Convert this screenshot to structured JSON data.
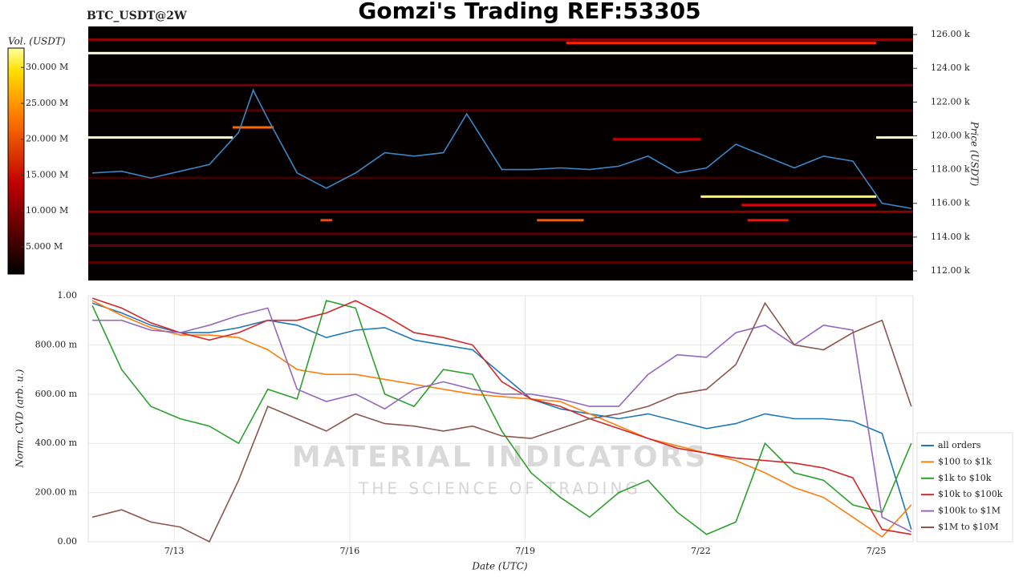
{
  "chart_data": [
    {
      "type": "heatmap",
      "title": "Gomzi's Trading REF:53305",
      "subtitle": "BTC_USDT@2W",
      "ylabel": "Price (USDT)",
      "zlabel": "Vol. (USDT)",
      "xlim": [
        11.53,
        25.63
      ],
      "ylim": [
        111430,
        126480
      ],
      "yticks": [
        {
          "value": 112000,
          "label": "112.00 k"
        },
        {
          "value": 114000,
          "label": "114.00 k"
        },
        {
          "value": 116000,
          "label": "116.00 k"
        },
        {
          "value": 118000,
          "label": "118.00 k"
        },
        {
          "value": 120000,
          "label": "120.00 k"
        },
        {
          "value": 122000,
          "label": "122.00 k"
        },
        {
          "value": 124000,
          "label": "124.00 k"
        },
        {
          "value": 126000,
          "label": "126.00 k"
        }
      ],
      "zlim": [
        1200000,
        32700000
      ],
      "zticks": [
        {
          "value": 5000000,
          "label": "5.000 M"
        },
        {
          "value": 10000000,
          "label": "10.000 M"
        },
        {
          "value": 15000000,
          "label": "15.000 M"
        },
        {
          "value": 20000000,
          "label": "20.000 M"
        },
        {
          "value": 25000000,
          "label": "25.000 M"
        },
        {
          "value": 30000000,
          "label": "30.000 M"
        }
      ],
      "walls": [
        {
          "price": 125700,
          "start": 11.53,
          "end": 25.63,
          "volume": 9000000
        },
        {
          "price": 124900,
          "start": 11.53,
          "end": 25.63,
          "volume": 31000000
        },
        {
          "price": 125500,
          "start": 19.7,
          "end": 25.0,
          "volume": 16000000
        },
        {
          "price": 123000,
          "start": 11.53,
          "end": 25.63,
          "volume": 8000000
        },
        {
          "price": 121500,
          "start": 11.53,
          "end": 25.63,
          "volume": 6000000
        },
        {
          "price": 120500,
          "start": 14.0,
          "end": 14.7,
          "volume": 20000000
        },
        {
          "price": 119900,
          "start": 11.53,
          "end": 14.0,
          "volume": 31000000
        },
        {
          "price": 119900,
          "start": 25.0,
          "end": 25.63,
          "volume": 31000000
        },
        {
          "price": 119800,
          "start": 20.5,
          "end": 22.0,
          "volume": 12000000
        },
        {
          "price": 117500,
          "start": 11.53,
          "end": 25.63,
          "volume": 5000000
        },
        {
          "price": 116400,
          "start": 22.0,
          "end": 25.0,
          "volume": 28000000
        },
        {
          "price": 115900,
          "start": 22.7,
          "end": 25.0,
          "volume": 14000000
        },
        {
          "price": 115500,
          "start": 11.53,
          "end": 25.63,
          "volume": 9000000
        },
        {
          "price": 115000,
          "start": 15.5,
          "end": 15.7,
          "volume": 18000000
        },
        {
          "price": 115000,
          "start": 19.2,
          "end": 20.0,
          "volume": 19000000
        },
        {
          "price": 115000,
          "start": 22.8,
          "end": 23.5,
          "volume": 15000000
        },
        {
          "price": 114200,
          "start": 11.53,
          "end": 25.63,
          "volume": 6000000
        },
        {
          "price": 113500,
          "start": 11.53,
          "end": 25.63,
          "volume": 7000000
        },
        {
          "price": 112500,
          "start": 11.53,
          "end": 25.63,
          "volume": 6000000
        }
      ],
      "line_color": "#3a87c8",
      "x": [
        11.6,
        12.1,
        12.6,
        13.1,
        13.6,
        14.1,
        14.35,
        14.6,
        15.1,
        15.6,
        16.1,
        16.6,
        17.1,
        17.6,
        18.0,
        18.6,
        19.1,
        19.6,
        20.1,
        20.6,
        21.1,
        21.6,
        22.1,
        22.6,
        23.1,
        23.6,
        24.1,
        24.6,
        25.1,
        25.6
      ],
      "values": [
        117800,
        117900,
        117500,
        117900,
        118300,
        120200,
        122700,
        121000,
        117800,
        116900,
        117800,
        119000,
        118800,
        119000,
        121300,
        118000,
        118000,
        118100,
        118000,
        118200,
        118800,
        117800,
        118100,
        119500,
        118800,
        118100,
        118800,
        118500,
        116000,
        115700
      ]
    },
    {
      "type": "line",
      "xlabel": "Date (UTC)",
      "ylabel": "Norm. CVD (arb. u.)",
      "grid": true,
      "legend": "lower right",
      "watermark": "MATERIAL INDICATORS",
      "watermark_sub": "THE SCIENCE OF TRADING",
      "xlim": [
        11.53,
        25.63
      ],
      "ylim": [
        0,
        1
      ],
      "xticks": [
        {
          "value": 13,
          "label": "7/13"
        },
        {
          "value": 16,
          "label": "7/16"
        },
        {
          "value": 19,
          "label": "7/19"
        },
        {
          "value": 22,
          "label": "7/22"
        },
        {
          "value": 25,
          "label": "7/25"
        }
      ],
      "yticks": [
        {
          "value": 0,
          "label": "0.00"
        },
        {
          "value": 0.2,
          "label": "200.00 m"
        },
        {
          "value": 0.4,
          "label": "400.00 m"
        },
        {
          "value": 0.6,
          "label": "600.00 m"
        },
        {
          "value": 0.8,
          "label": "800.00 m"
        },
        {
          "value": 1,
          "label": "1.00"
        }
      ],
      "x": [
        11.6,
        12.1,
        12.6,
        13.1,
        13.6,
        14.1,
        14.6,
        15.1,
        15.6,
        16.1,
        16.6,
        17.1,
        17.6,
        18.1,
        18.6,
        19.1,
        19.6,
        20.1,
        20.6,
        21.1,
        21.6,
        22.1,
        22.6,
        23.1,
        23.6,
        24.1,
        24.6,
        25.1,
        25.6
      ],
      "series": [
        {
          "name": "all orders",
          "color": "#1f77b4",
          "values": [
            0.97,
            0.93,
            0.88,
            0.85,
            0.85,
            0.87,
            0.9,
            0.88,
            0.83,
            0.86,
            0.87,
            0.82,
            0.8,
            0.78,
            0.68,
            0.58,
            0.54,
            0.52,
            0.5,
            0.52,
            0.49,
            0.46,
            0.48,
            0.52,
            0.5,
            0.5,
            0.49,
            0.44,
            0.05
          ]
        },
        {
          "name": "$100 to $1k",
          "color": "#ff7f0e",
          "values": [
            0.98,
            0.92,
            0.87,
            0.84,
            0.84,
            0.83,
            0.78,
            0.7,
            0.68,
            0.68,
            0.66,
            0.64,
            0.62,
            0.6,
            0.59,
            0.58,
            0.57,
            0.52,
            0.47,
            0.42,
            0.39,
            0.36,
            0.33,
            0.28,
            0.22,
            0.18,
            0.1,
            0.02,
            0.15
          ]
        },
        {
          "name": "$1k to $10k",
          "color": "#2ca02c",
          "values": [
            0.96,
            0.7,
            0.55,
            0.5,
            0.47,
            0.4,
            0.62,
            0.58,
            0.98,
            0.95,
            0.6,
            0.55,
            0.7,
            0.68,
            0.45,
            0.28,
            0.18,
            0.1,
            0.2,
            0.25,
            0.12,
            0.03,
            0.08,
            0.4,
            0.28,
            0.25,
            0.15,
            0.12,
            0.4
          ]
        },
        {
          "name": "$10k to $100k",
          "color": "#d62728",
          "values": [
            0.99,
            0.95,
            0.89,
            0.85,
            0.82,
            0.85,
            0.9,
            0.9,
            0.93,
            0.98,
            0.92,
            0.85,
            0.83,
            0.8,
            0.65,
            0.58,
            0.55,
            0.5,
            0.46,
            0.42,
            0.38,
            0.36,
            0.34,
            0.33,
            0.32,
            0.3,
            0.26,
            0.05,
            0.03
          ]
        },
        {
          "name": "$100k to $1M",
          "color": "#9467bd",
          "values": [
            0.9,
            0.9,
            0.86,
            0.85,
            0.88,
            0.92,
            0.95,
            0.62,
            0.57,
            0.6,
            0.54,
            0.62,
            0.65,
            0.62,
            0.6,
            0.6,
            0.58,
            0.55,
            0.55,
            0.68,
            0.76,
            0.75,
            0.85,
            0.88,
            0.8,
            0.88,
            0.86,
            0.1,
            0.04
          ]
        },
        {
          "name": "$1M to $10M",
          "color": "#8c564b",
          "values": [
            0.1,
            0.13,
            0.08,
            0.06,
            0,
            0.25,
            0.55,
            0.5,
            0.45,
            0.52,
            0.48,
            0.47,
            0.45,
            0.47,
            0.43,
            0.42,
            0.46,
            0.5,
            0.52,
            0.55,
            0.6,
            0.62,
            0.72,
            0.97,
            0.8,
            0.78,
            0.85,
            0.9,
            0.55
          ]
        }
      ]
    }
  ]
}
